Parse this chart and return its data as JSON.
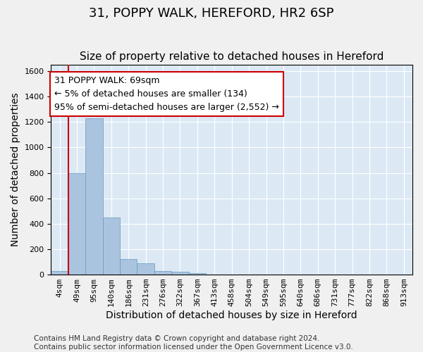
{
  "title_line1": "31, POPPY WALK, HEREFORD, HR2 6SP",
  "title_line2": "Size of property relative to detached houses in Hereford",
  "xlabel": "Distribution of detached houses by size in Hereford",
  "ylabel": "Number of detached properties",
  "annotation_title": "31 POPPY WALK: 69sqm",
  "annotation_line2": "← 5% of detached houses are smaller (134)",
  "annotation_line3": "95% of semi-detached houses are larger (2,552) →",
  "footer_line1": "Contains HM Land Registry data © Crown copyright and database right 2024.",
  "footer_line2": "Contains public sector information licensed under the Open Government Licence v3.0.",
  "bin_labels": [
    "4sqm",
    "49sqm",
    "95sqm",
    "140sqm",
    "186sqm",
    "231sqm",
    "276sqm",
    "322sqm",
    "367sqm",
    "413sqm",
    "458sqm",
    "504sqm",
    "549sqm",
    "595sqm",
    "640sqm",
    "686sqm",
    "731sqm",
    "777sqm",
    "822sqm",
    "868sqm",
    "913sqm"
  ],
  "bar_values": [
    30,
    800,
    1230,
    450,
    120,
    90,
    30,
    20,
    10,
    2,
    0,
    0,
    0,
    0,
    0,
    0,
    0,
    0,
    0,
    0,
    0
  ],
  "bar_color": "#aac4e0",
  "bar_edge_color": "#6699bb",
  "vline_x": 1,
  "vline_color": "#cc0000",
  "annotation_box_color": "#ffffff",
  "annotation_box_edge": "#cc0000",
  "ylim": [
    0,
    1650
  ],
  "yticks": [
    0,
    200,
    400,
    600,
    800,
    1000,
    1200,
    1400,
    1600
  ],
  "plot_background": "#dce9f5",
  "fig_background": "#f0f0f0",
  "grid_color": "#ffffff",
  "title_fontsize": 13,
  "subtitle_fontsize": 11,
  "axis_label_fontsize": 10,
  "tick_fontsize": 8,
  "annotation_fontsize": 9,
  "footer_fontsize": 7.5
}
